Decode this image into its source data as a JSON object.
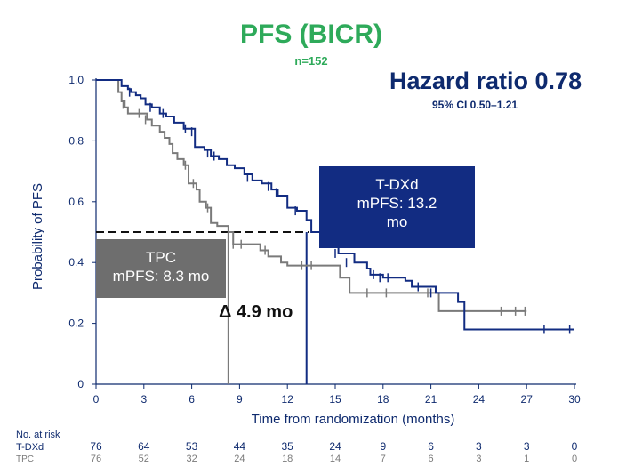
{
  "chart_data": {
    "type": "line",
    "title": "PFS (BICR)",
    "subtitle": "n=152",
    "xlabel": "Time from randomization (months)",
    "ylabel": "Probability of PFS",
    "xlim": [
      0,
      30
    ],
    "ylim": [
      0,
      1.0
    ],
    "xticks": [
      "0",
      "3",
      "6",
      "9",
      "12",
      "15",
      "18",
      "21",
      "24",
      "27",
      "30"
    ],
    "yticks": [
      "0",
      "0.2",
      "0.4",
      "0.6",
      "0.8",
      "1.0"
    ],
    "hazard_ratio": "Hazard ratio 0.78",
    "ci": "95% CI 0.50–1.21",
    "median_line": 0.5,
    "delta_label": "Δ 4.9 mo",
    "series": [
      {
        "name": "T-DXd",
        "color": "#122c82",
        "label_line1": "T-DXd",
        "label_line2": "mPFS: 13.2",
        "label_line3": "mo",
        "median": 13.2,
        "points": [
          [
            0,
            1.0
          ],
          [
            1.3,
            1.0
          ],
          [
            1.6,
            0.98
          ],
          [
            2.0,
            0.97
          ],
          [
            2.2,
            0.96
          ],
          [
            2.5,
            0.95
          ],
          [
            2.8,
            0.94
          ],
          [
            3.1,
            0.92
          ],
          [
            3.5,
            0.91
          ],
          [
            4.0,
            0.89
          ],
          [
            4.4,
            0.88
          ],
          [
            4.9,
            0.86
          ],
          [
            5.5,
            0.84
          ],
          [
            6.2,
            0.78
          ],
          [
            6.8,
            0.77
          ],
          [
            7.2,
            0.75
          ],
          [
            7.7,
            0.74
          ],
          [
            8.2,
            0.72
          ],
          [
            8.7,
            0.71
          ],
          [
            9.3,
            0.69
          ],
          [
            9.8,
            0.67
          ],
          [
            10.4,
            0.66
          ],
          [
            11.0,
            0.64
          ],
          [
            11.4,
            0.62
          ],
          [
            12.0,
            0.58
          ],
          [
            12.6,
            0.57
          ],
          [
            13.2,
            0.54
          ],
          [
            13.5,
            0.5
          ],
          [
            14.3,
            0.48
          ],
          [
            15.2,
            0.43
          ],
          [
            16.2,
            0.4
          ],
          [
            17.0,
            0.38
          ],
          [
            17.2,
            0.36
          ],
          [
            18.0,
            0.35
          ],
          [
            19.4,
            0.34
          ],
          [
            19.8,
            0.32
          ],
          [
            21.3,
            0.3
          ],
          [
            22.7,
            0.27
          ],
          [
            23.1,
            0.18
          ],
          [
            30,
            0.18
          ]
        ],
        "censors": [
          [
            2.1,
            0.96
          ],
          [
            3.4,
            0.91
          ],
          [
            4.2,
            0.89
          ],
          [
            5.6,
            0.84
          ],
          [
            6.0,
            0.83
          ],
          [
            7.0,
            0.76
          ],
          [
            7.4,
            0.75
          ],
          [
            9.5,
            0.68
          ],
          [
            10.8,
            0.65
          ],
          [
            11.3,
            0.63
          ],
          [
            12.5,
            0.57
          ],
          [
            15.0,
            0.43
          ],
          [
            15.7,
            0.4
          ],
          [
            17.4,
            0.36
          ],
          [
            17.8,
            0.35
          ],
          [
            18.3,
            0.35
          ],
          [
            20.2,
            0.32
          ],
          [
            21.0,
            0.3
          ],
          [
            28.1,
            0.18
          ],
          [
            29.7,
            0.18
          ]
        ],
        "risk": [
          "76",
          "64",
          "53",
          "44",
          "35",
          "24",
          "9",
          "6",
          "3",
          "3",
          "0"
        ]
      },
      {
        "name": "TPC",
        "color": "#7a7a7a",
        "label_line1": "TPC",
        "label_line2": "mPFS: 8.3 mo",
        "median": 8.3,
        "points": [
          [
            0,
            1.0
          ],
          [
            1.2,
            1.0
          ],
          [
            1.4,
            0.96
          ],
          [
            1.6,
            0.93
          ],
          [
            1.8,
            0.91
          ],
          [
            2.0,
            0.89
          ],
          [
            3.2,
            0.87
          ],
          [
            3.5,
            0.85
          ],
          [
            4.0,
            0.83
          ],
          [
            4.3,
            0.81
          ],
          [
            4.6,
            0.79
          ],
          [
            4.8,
            0.76
          ],
          [
            5.1,
            0.74
          ],
          [
            5.5,
            0.72
          ],
          [
            5.8,
            0.66
          ],
          [
            6.3,
            0.64
          ],
          [
            6.5,
            0.6
          ],
          [
            6.9,
            0.58
          ],
          [
            7.2,
            0.53
          ],
          [
            7.6,
            0.52
          ],
          [
            8.3,
            0.5
          ],
          [
            8.6,
            0.46
          ],
          [
            9.5,
            0.46
          ],
          [
            10.3,
            0.44
          ],
          [
            10.8,
            0.42
          ],
          [
            11.6,
            0.4
          ],
          [
            12.0,
            0.39
          ],
          [
            15.0,
            0.39
          ],
          [
            15.3,
            0.35
          ],
          [
            15.9,
            0.3
          ],
          [
            21.2,
            0.3
          ],
          [
            21.5,
            0.24
          ],
          [
            27,
            0.24
          ]
        ],
        "censors": [
          [
            1.7,
            0.92
          ],
          [
            2.7,
            0.89
          ],
          [
            3.1,
            0.87
          ],
          [
            5.6,
            0.72
          ],
          [
            6.1,
            0.66
          ],
          [
            7.0,
            0.58
          ],
          [
            8.6,
            0.46
          ],
          [
            9.1,
            0.46
          ],
          [
            10.6,
            0.44
          ],
          [
            12.9,
            0.39
          ],
          [
            13.5,
            0.39
          ],
          [
            17.0,
            0.3
          ],
          [
            18.2,
            0.3
          ],
          [
            20.8,
            0.3
          ],
          [
            23.1,
            0.24
          ],
          [
            25.4,
            0.24
          ],
          [
            26.3,
            0.24
          ],
          [
            26.9,
            0.24
          ]
        ],
        "risk": [
          "76",
          "52",
          "32",
          "24",
          "18",
          "14",
          "7",
          "6",
          "3",
          "1",
          "0"
        ]
      }
    ]
  },
  "risk_table": {
    "header": "No. at risk",
    "row1_label": "T-DXd",
    "row2_label": "TPC"
  }
}
